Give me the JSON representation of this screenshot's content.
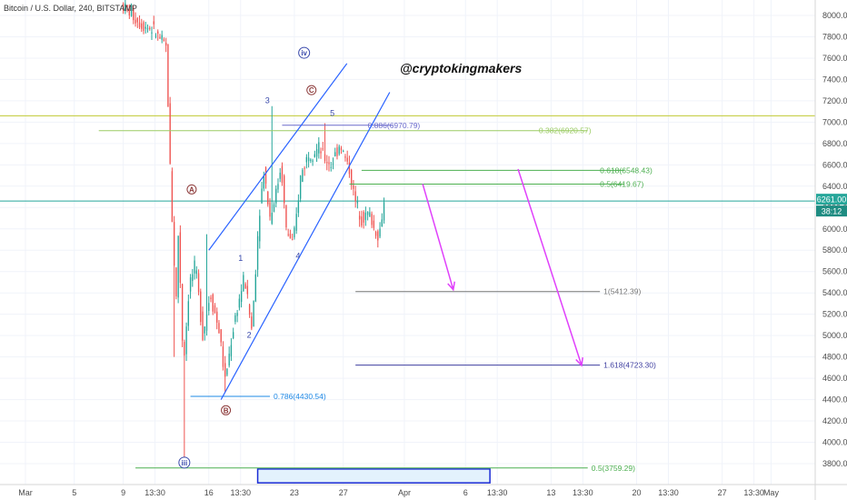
{
  "title": "Bitcoin / U.S. Dollar, 240, BITSTAMP",
  "watermark": "@cryptokingmakers",
  "colors": {
    "bull": "#26a69a",
    "bear": "#ef5350",
    "grid": "#f0f3fa",
    "channel": "#2962ff",
    "arrow": "#e040fb",
    "green": "#4caf50",
    "olive": "#c0ca33",
    "teal": "#26a69a",
    "blue_wave": "#3949ab",
    "brown": "#8d3b3b",
    "dark_gray": "#555555",
    "blue_fib": "#1e88e5"
  },
  "chart_data": {
    "type": "candlestick",
    "ylim": [
      3620,
      8150
    ],
    "y_ticks": [
      3800,
      4000,
      4200,
      4400,
      4600,
      4800,
      5000,
      5200,
      5400,
      5600,
      5800,
      6000,
      6200,
      6400,
      6600,
      6800,
      7000,
      7200,
      7400,
      7600,
      7800,
      8000
    ],
    "x_ticks": [
      {
        "label": "Mar",
        "x": 0
      },
      {
        "label": "5",
        "x": 4
      },
      {
        "label": "9",
        "x": 8
      },
      {
        "label": "13:30",
        "x": 10.6
      },
      {
        "label": "16",
        "x": 15
      },
      {
        "label": "13:30",
        "x": 17.6
      },
      {
        "label": "23",
        "x": 22
      },
      {
        "label": "27",
        "x": 26
      },
      {
        "label": "Apr",
        "x": 31
      },
      {
        "label": "6",
        "x": 36
      },
      {
        "label": "13:30",
        "x": 38.6
      },
      {
        "label": "13",
        "x": 43
      },
      {
        "label": "13:30",
        "x": 45.6
      },
      {
        "label": "20",
        "x": 50
      },
      {
        "label": "13:30",
        "x": 52.6
      },
      {
        "label": "27",
        "x": 57
      },
      {
        "label": "13:30",
        "x": 59.6
      },
      {
        "label": "May",
        "x": 61
      }
    ],
    "anchors": [
      [
        8.0,
        8100
      ],
      [
        9.5,
        7920
      ],
      [
        10.5,
        7870
      ],
      [
        11.6,
        7700
      ],
      [
        12.0,
        6300
      ],
      [
        12.4,
        5300
      ],
      [
        12.6,
        6000
      ],
      [
        13.0,
        4700
      ],
      [
        13.5,
        5500
      ],
      [
        14.0,
        5650
      ],
      [
        14.6,
        5000
      ],
      [
        15.2,
        5400
      ],
      [
        16.0,
        5000
      ],
      [
        16.4,
        4570
      ],
      [
        17.2,
        5150
      ],
      [
        18.0,
        5550
      ],
      [
        18.6,
        5050
      ],
      [
        19.2,
        6150
      ],
      [
        19.6,
        6550
      ],
      [
        20.1,
        6100
      ],
      [
        20.6,
        6350
      ],
      [
        21.0,
        6600
      ],
      [
        21.4,
        6000
      ],
      [
        22.0,
        5850
      ],
      [
        22.6,
        6500
      ],
      [
        23.2,
        6700
      ],
      [
        24.1,
        6750
      ],
      [
        24.6,
        6650
      ],
      [
        25.1,
        6600
      ],
      [
        25.8,
        6800
      ],
      [
        26.6,
        6550
      ],
      [
        27.0,
        6280
      ],
      [
        27.6,
        6100
      ],
      [
        28.2,
        6150
      ],
      [
        28.6,
        6000
      ],
      [
        29.0,
        5920
      ],
      [
        29.4,
        6240
      ]
    ],
    "spikes": [
      {
        "x": 13.0,
        "low": 3860
      },
      {
        "x": 16.4,
        "low": 4470
      },
      {
        "x": 20.2,
        "high": 7150
      },
      {
        "x": 24.5,
        "high": 6990
      },
      {
        "x": 12.1,
        "low": 4800
      },
      {
        "x": 14.9,
        "high": 5950
      }
    ],
    "current_price": 6261,
    "current_price_label": "6261.00",
    "countdown_label": "38:12",
    "fib_levels": [
      {
        "label": "0.886(6970.79)",
        "price": 6970.79,
        "x1": 21.0,
        "x2": 30.0,
        "label_x": 28.0,
        "color": "#6a6acc"
      },
      {
        "label": "0.382(6920.57)",
        "price": 6920.57,
        "x1": 6.0,
        "x2": 46.0,
        "label_x": 42.0,
        "color": "#9ccc65"
      },
      {
        "label": "0.618(6548.43)",
        "price": 6548.43,
        "x1": 27.5,
        "x2": 49.0,
        "label_x": 47.0,
        "color": "#4caf50"
      },
      {
        "label": "0.5(6419.67)",
        "price": 6419.67,
        "x1": 26.5,
        "x2": 49.0,
        "label_x": 47.0,
        "color": "#4caf50"
      },
      {
        "label": "1(5412.39)",
        "price": 5412.39,
        "x1": 27.0,
        "x2": 47.0,
        "label_x": 47.3,
        "color": "#777777"
      },
      {
        "label": "1.618(4723.30)",
        "price": 4723.3,
        "x1": 27.0,
        "x2": 47.0,
        "label_x": 47.3,
        "color": "#3f3fa0"
      },
      {
        "label": "0.786(4430.54)",
        "price": 4430.54,
        "x1": 13.5,
        "x2": 20.0,
        "label_x": 20.3,
        "color": "#1e88e5"
      },
      {
        "label": "0.5(3759.29)",
        "price": 3759.29,
        "x1": 9.0,
        "x2": 46.0,
        "label_x": 46.3,
        "color": "#4caf50"
      }
    ],
    "hlines": [
      {
        "price": 7060,
        "color": "#c0ca33"
      },
      {
        "price": 6261,
        "color": "#26a69a"
      }
    ],
    "channel": [
      {
        "x1": 15.0,
        "y1": 5800,
        "x2": 26.3,
        "y2": 7550
      },
      {
        "x1": 16.0,
        "y1": 4400,
        "x2": 29.8,
        "y2": 7280
      }
    ],
    "arrows": [
      {
        "x1": 32.5,
        "y1": 6420,
        "x2": 35.0,
        "y2": 5430
      },
      {
        "x1": 40.3,
        "y1": 6560,
        "x2": 45.5,
        "y2": 4720
      }
    ],
    "box": {
      "x1": 19.0,
      "x2": 38.0,
      "top": 3750,
      "bottom": 3620
    },
    "wave_labels": [
      {
        "text": "3",
        "x": 19.8,
        "price": 7180,
        "color": "#3949ab"
      },
      {
        "text": "5",
        "x": 25.1,
        "price": 7060,
        "color": "#3949ab"
      },
      {
        "text": "1",
        "x": 17.6,
        "price": 5700,
        "color": "#3949ab"
      },
      {
        "text": "2",
        "x": 18.3,
        "price": 4980,
        "color": "#3949ab"
      },
      {
        "text": "4",
        "x": 22.3,
        "price": 5720,
        "color": "#3949ab"
      }
    ],
    "circle_labels": [
      {
        "text": "iv",
        "x": 22.8,
        "price": 7650,
        "color": "#3949ab",
        "r": 6
      },
      {
        "text": "C",
        "x": 23.4,
        "price": 7300,
        "color": "#8d3b3b",
        "r": 5
      },
      {
        "text": "A",
        "x": 13.6,
        "price": 6370,
        "color": "#8d3b3b",
        "r": 5
      },
      {
        "text": "B",
        "x": 16.4,
        "price": 4300,
        "color": "#8d3b3b",
        "r": 5
      },
      {
        "text": "iii",
        "x": 13.0,
        "price": 3810,
        "color": "#3949ab",
        "r": 6
      }
    ]
  }
}
